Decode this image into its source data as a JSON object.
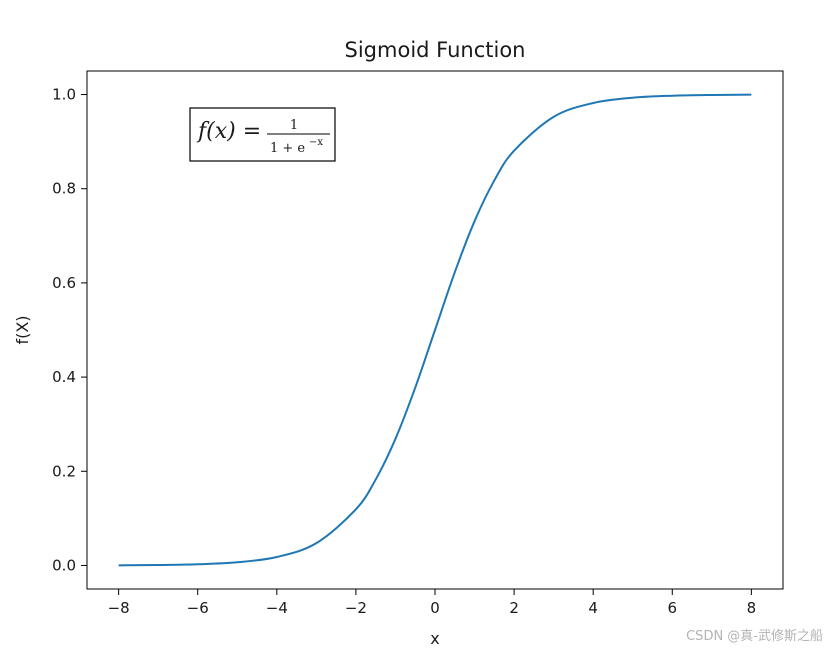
{
  "chart_data": {
    "type": "line",
    "title": "Sigmoid Function",
    "xlabel": "x",
    "ylabel": "f(X)",
    "xlim": [
      -8.8,
      8.8
    ],
    "ylim": [
      -0.05,
      1.05
    ],
    "x_ticks": [
      -8,
      -6,
      -4,
      -2,
      0,
      2,
      4,
      6,
      8
    ],
    "x_tick_labels": [
      "−8",
      "−6",
      "−4",
      "−2",
      "0",
      "2",
      "4",
      "6",
      "8"
    ],
    "y_ticks": [
      0.0,
      0.2,
      0.4,
      0.6,
      0.8,
      1.0
    ],
    "y_tick_labels": [
      "0.0",
      "0.2",
      "0.4",
      "0.6",
      "0.8",
      "1.0"
    ],
    "grid": false,
    "series": [
      {
        "color": "#1f77b4",
        "x": [
          -8,
          -7,
          -6,
          -5,
          -4,
          -3,
          -2,
          -1.5,
          -1,
          -0.5,
          0,
          0.5,
          1,
          1.5,
          2,
          3,
          4,
          5,
          6,
          7,
          8
        ],
        "y": [
          0.0003,
          0.0009,
          0.0025,
          0.0067,
          0.018,
          0.0474,
          0.1192,
          0.1824,
          0.2689,
          0.3775,
          0.5,
          0.6225,
          0.7311,
          0.8176,
          0.8808,
          0.9526,
          0.982,
          0.9933,
          0.9975,
          0.9991,
          0.9997
        ]
      }
    ],
    "annotation": {
      "lhs": "f(x) =",
      "numerator": "1",
      "denominator": "1 + e",
      "exponent": "−x"
    }
  },
  "watermark": "CSDN @真-武修斯之船"
}
